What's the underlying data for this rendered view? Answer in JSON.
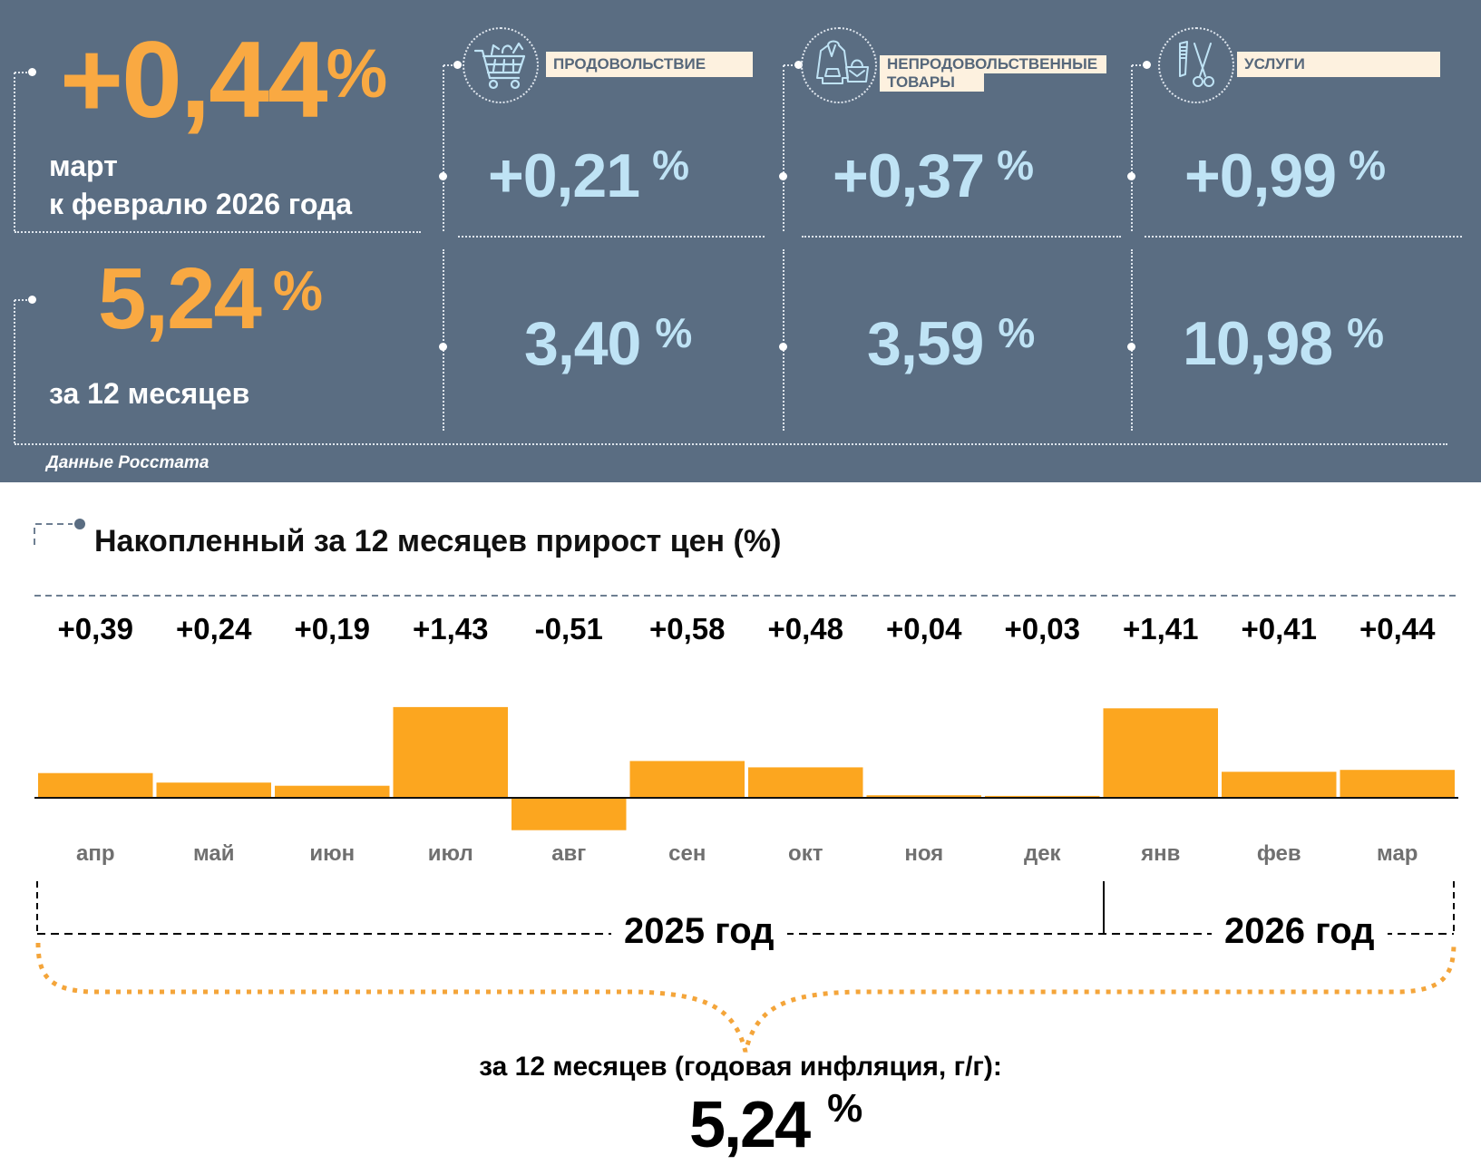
{
  "header": {
    "monthly": {
      "value": "+0,44",
      "unit": "%",
      "label_line1": "март",
      "label_line2": "к февралю 2026 года"
    },
    "annual": {
      "value": "5,24",
      "unit": "%",
      "label": "за 12 месяцев"
    },
    "source": "Данные Росстата",
    "categories": [
      {
        "name": "ПРОДОВОЛЬСТВИЕ",
        "name_line2": "",
        "icon": "shopping-cart-icon",
        "monthly": "+0,21",
        "annual": "3,40",
        "unit": "%"
      },
      {
        "name": "НЕПРОДОВОЛЬСТВЕННЫЕ",
        "name_line2": "ТОВАРЫ",
        "icon": "clothes-bag-icon",
        "monthly": "+0,37",
        "annual": "3,59",
        "unit": "%"
      },
      {
        "name": "УСЛУГИ",
        "name_line2": "",
        "icon": "comb-scissors-icon",
        "monthly": "+0,99",
        "annual": "10,98",
        "unit": "%"
      }
    ]
  },
  "colors": {
    "panel_bg": "#5a6d82",
    "accent_orange": "#f9a942",
    "bar_orange": "#fca61f",
    "value_blue": "#bfe3f5",
    "label_bg": "#fdf1df"
  },
  "chart_data": {
    "type": "bar",
    "title": "Накопленный за 12 месяцев прирост цен (%)",
    "categories": [
      "апр",
      "май",
      "июн",
      "июл",
      "авг",
      "сен",
      "окт",
      "ноя",
      "дек",
      "янв",
      "фев",
      "мар"
    ],
    "values": [
      0.39,
      0.24,
      0.19,
      1.43,
      -0.51,
      0.58,
      0.48,
      0.04,
      0.03,
      1.41,
      0.41,
      0.44
    ],
    "value_labels": [
      "+0,39",
      "+0,24",
      "+0,19",
      "+1,43",
      "-0,51",
      "+0,58",
      "+0,48",
      "+0,04",
      "+0,03",
      "+1,41",
      "+0,41",
      "+0,44"
    ],
    "xlabel": "",
    "ylabel": "",
    "grid": false,
    "year_groups": [
      {
        "label": "2025 год",
        "from": "апр",
        "to": "дек"
      },
      {
        "label": "2026 год",
        "from": "янв",
        "to": "мар"
      }
    ],
    "summary_label": "за 12 месяцев (годовая инфляция, г/г):",
    "summary_value": "5,24",
    "summary_unit": "%"
  }
}
